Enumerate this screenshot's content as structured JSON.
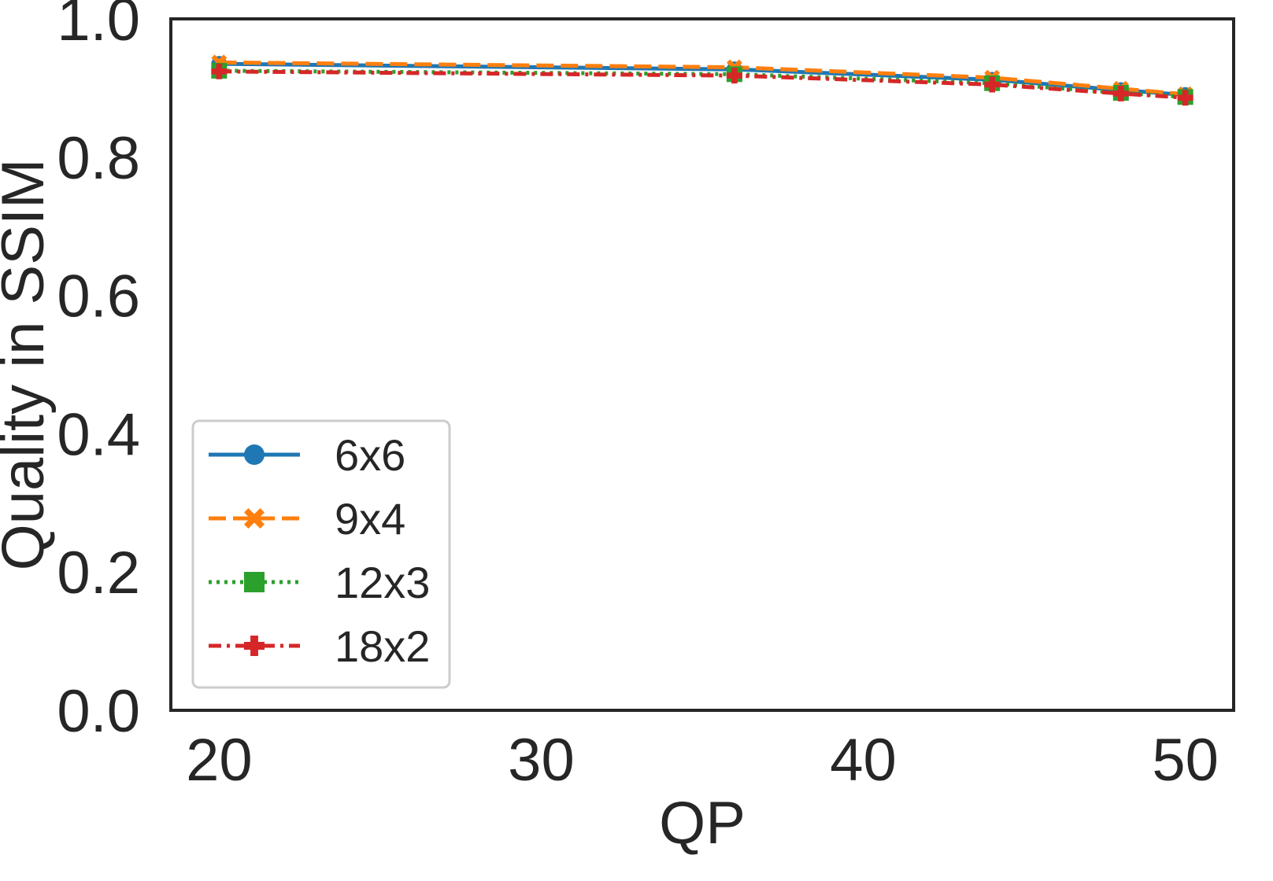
{
  "chart_data": {
    "type": "line",
    "xlabel": "QP",
    "ylabel": "Quality in SSIM",
    "xlim": [
      18.5,
      51.5
    ],
    "ylim": [
      0.0,
      1.0
    ],
    "xticks": [
      20,
      30,
      40,
      50
    ],
    "xtick_labels": [
      "20",
      "30",
      "40",
      "50"
    ],
    "yticks": [
      0.0,
      0.2,
      0.4,
      0.6,
      0.8,
      1.0
    ],
    "ytick_labels": [
      "0.0",
      "0.2",
      "0.4",
      "0.6",
      "0.8",
      "1.0"
    ],
    "grid": false,
    "legend_position": "lower-left",
    "x": [
      20,
      36,
      44,
      48,
      50
    ],
    "series": [
      {
        "name": "6x6",
        "values": [
          0.935,
          0.927,
          0.912,
          0.897,
          0.89
        ],
        "color": "#1f77b4",
        "line_style": "solid",
        "marker": "circle"
      },
      {
        "name": "9x4",
        "values": [
          0.937,
          0.93,
          0.915,
          0.899,
          0.891
        ],
        "color": "#ff7f0e",
        "line_style": "dashed",
        "marker": "x-filled"
      },
      {
        "name": "12x3",
        "values": [
          0.925,
          0.92,
          0.907,
          0.893,
          0.887
        ],
        "color": "#2ca02c",
        "line_style": "dotted",
        "marker": "square"
      },
      {
        "name": "18x2",
        "values": [
          0.924,
          0.918,
          0.905,
          0.892,
          0.886
        ],
        "color": "#d62728",
        "line_style": "dashdot",
        "marker": "plus-filled"
      }
    ]
  }
}
